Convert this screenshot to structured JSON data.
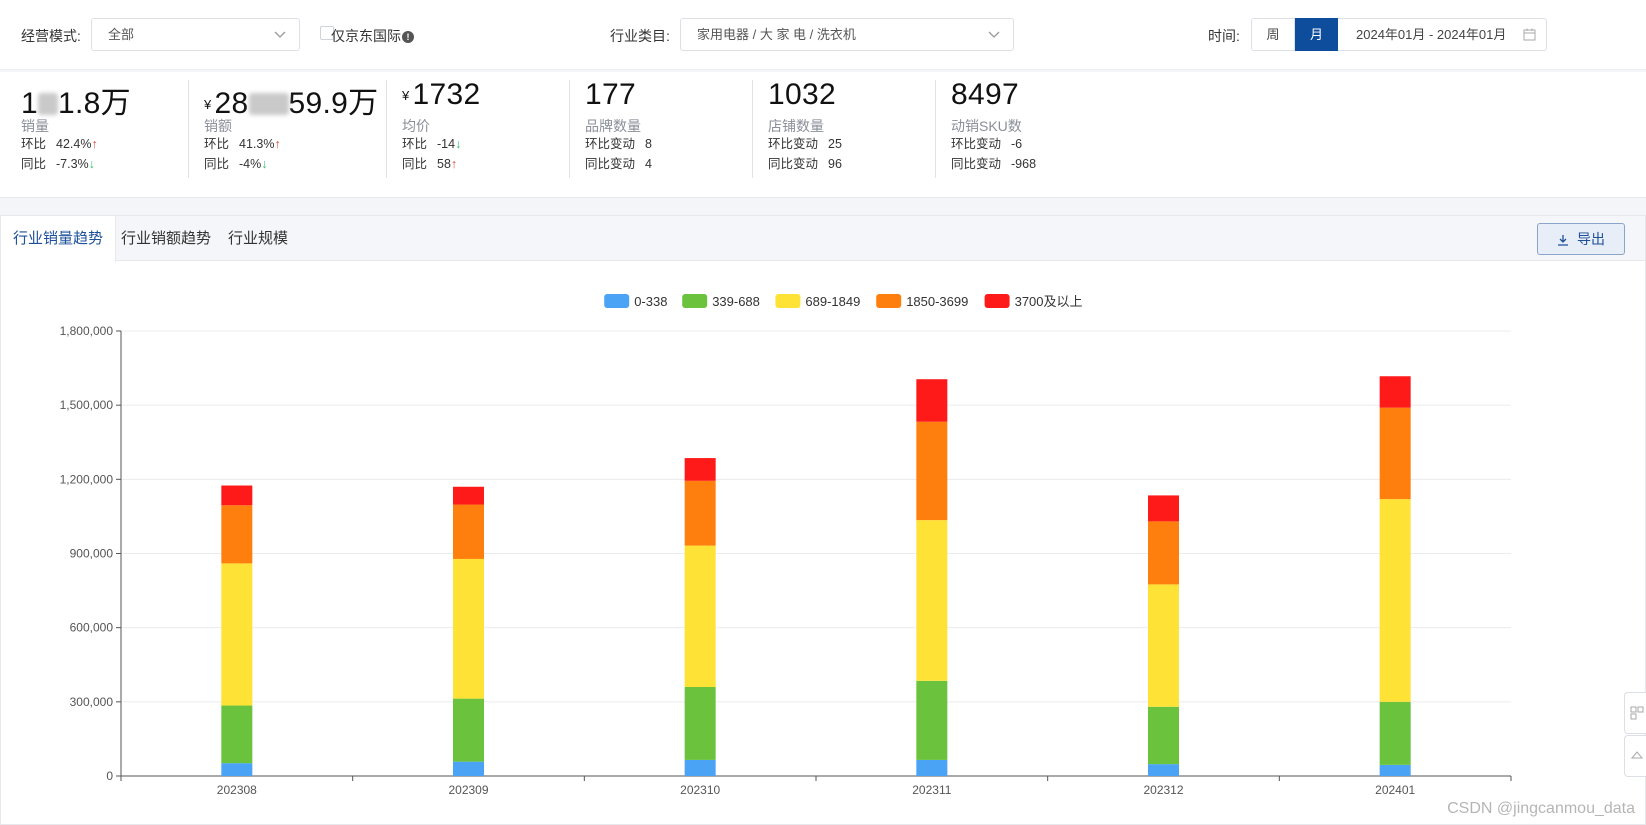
{
  "filters": {
    "mode_label": "经营模式:",
    "mode_value": "全部",
    "jd_intl_label": "仅京东国际",
    "category_label": "行业类目:",
    "category_value": "家用电器 / 大 家 电 / 洗衣机",
    "time_label": "时间:",
    "week_label": "周",
    "month_label": "月",
    "date_range": "2024年01月 - 2024年01月"
  },
  "kpis": [
    {
      "value_a": "1",
      "value_b": "1.8万",
      "currency": "",
      "label": "销量",
      "row1_label": "环比",
      "row1_value": "42.4%",
      "row1_arrow": "↑",
      "row2_label": "同比",
      "row2_value": "-7.3%",
      "row2_arrow": "↓"
    },
    {
      "value_a": "28",
      "value_b": "59.9万",
      "currency": "¥",
      "label": "销额",
      "row1_label": "环比",
      "row1_value": "41.3%",
      "row1_arrow": "↑",
      "row2_label": "同比",
      "row2_value": "-4%",
      "row2_arrow": "↓"
    },
    {
      "value": "1732",
      "currency": "¥",
      "label": "均价",
      "row1_label": "环比",
      "row1_value": "-14",
      "row1_arrow": "↓",
      "row2_label": "同比",
      "row2_value": "58",
      "row2_arrow": "↑"
    },
    {
      "value": "177",
      "label": "品牌数量",
      "row1_label": "环比变动",
      "row1_value": "8",
      "row2_label": "同比变动",
      "row2_value": "4"
    },
    {
      "value": "1032",
      "label": "店铺数量",
      "row1_label": "环比变动",
      "row1_value": "25",
      "row2_label": "同比变动",
      "row2_value": "96"
    },
    {
      "value": "8497",
      "label": "动销SKU数",
      "row1_label": "环比变动",
      "row1_value": "-6",
      "row2_label": "同比变动",
      "row2_value": "-968"
    }
  ],
  "tabs": [
    "行业销量趋势",
    "行业销额趋势",
    "行业规模"
  ],
  "export_label": "导出",
  "watermark": "CSDN @jingcanmou_data",
  "colors": {
    "accent": "#0e4d9b",
    "s1": "#4aa3f5",
    "s2": "#6bc33d",
    "s3": "#ffe236",
    "s4": "#ff7f0e",
    "s5": "#ff1a1a"
  },
  "chart_data": {
    "type": "bar",
    "stacked": true,
    "title": "",
    "xlabel": "",
    "ylabel": "",
    "ylim": [
      0,
      1800000
    ],
    "yticks": [
      0,
      300000,
      600000,
      900000,
      1200000,
      1500000,
      1800000
    ],
    "ytick_labels": [
      "0",
      "300,000",
      "600,000",
      "900,000",
      "1,200,000",
      "1,500,000",
      "1,800,000"
    ],
    "categories": [
      "202308",
      "202309",
      "202310",
      "202311",
      "202312",
      "202401"
    ],
    "series": [
      {
        "name": "0-338",
        "color": "#4aa3f5",
        "values": [
          52000,
          58000,
          65000,
          65000,
          48000,
          45000
        ]
      },
      {
        "name": "339-688",
        "color": "#6bc33d",
        "values": [
          233000,
          255000,
          295000,
          320000,
          232000,
          255000
        ]
      },
      {
        "name": "689-1849",
        "color": "#ffe236",
        "values": [
          575000,
          565000,
          572000,
          650000,
          495000,
          820000
        ]
      },
      {
        "name": "1850-3699",
        "color": "#ff7f0e",
        "values": [
          235000,
          220000,
          262000,
          398000,
          255000,
          370000
        ]
      },
      {
        "name": "3700及以上",
        "color": "#ff1a1a",
        "values": [
          80000,
          72000,
          92000,
          172000,
          105000,
          127000
        ]
      }
    ],
    "legend_position": "top-center",
    "grid": true
  }
}
